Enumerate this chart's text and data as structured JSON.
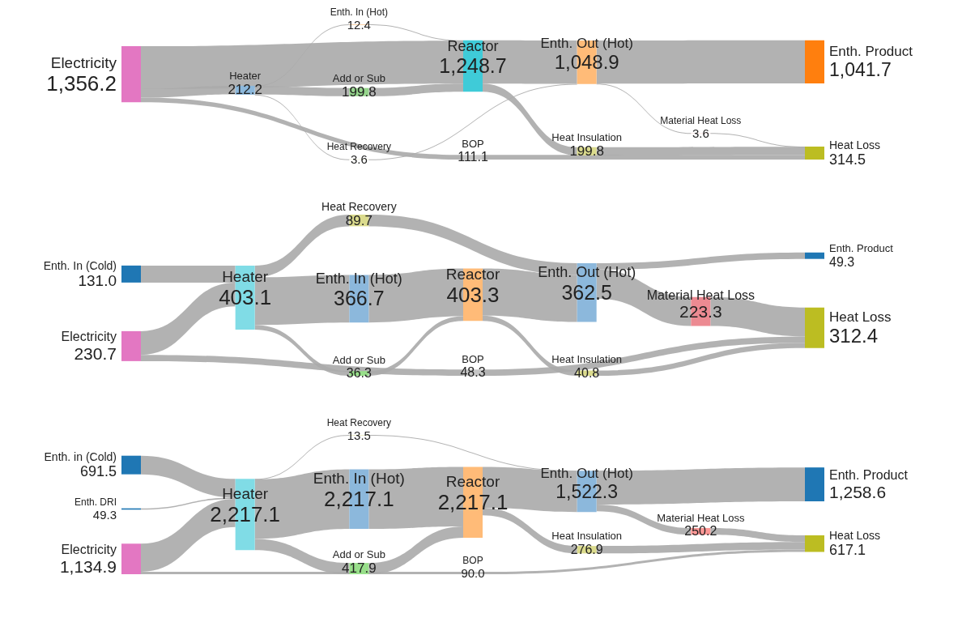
{
  "chart_data": [
    {
      "type": "other",
      "color": "#aaaaaa",
      "categories": [
        "Electricity",
        "Heater",
        "Enth. In (Hot)",
        "Add or Sub",
        "Heat Recovery",
        "Reactor",
        "BOP",
        "Enth. Out (Hot)",
        "Material Heat Loss",
        "Heat Insulation",
        "Enth. Product",
        "Heat Loss"
      ],
      "values": [
        1356.2,
        212.2,
        12.4,
        199.8,
        3.6,
        1248.7,
        111.1,
        1048.9,
        3.6,
        199.8,
        1041.7,
        314.5
      ],
      "value_labels": [
        "1,356.2",
        "212.2",
        "12.4",
        "199.8",
        "3.6",
        "1,248.7",
        "111.1",
        "1,048.9",
        "3.6",
        "199.8",
        "1,041.7",
        "314.5"
      ],
      "colors": [
        "#e377c2",
        "#8cb8dc",
        "#ffbb78",
        "#95d58c",
        "#dbdb8d",
        "#3fcbd8",
        "#c7c7c7",
        "#ffbb78",
        "#ff9896",
        "#dbdb8d",
        "#ff7f0e",
        "#bcbd22"
      ],
      "cells": [
        [
          null,
          true,
          null,
          null,
          null,
          true,
          true,
          null,
          null,
          null,
          null,
          null
        ],
        [
          null,
          null,
          true,
          true,
          null,
          null,
          null,
          null,
          null,
          null,
          null,
          null
        ],
        [
          null,
          null,
          null,
          null,
          null,
          true,
          null,
          null,
          null,
          null,
          null,
          null
        ],
        [
          null,
          null,
          null,
          null,
          null,
          true,
          null,
          null,
          null,
          null,
          null,
          null
        ],
        [
          null,
          true,
          null,
          null,
          null,
          null,
          null,
          null,
          null,
          null,
          null,
          null
        ],
        [
          null,
          null,
          null,
          null,
          null,
          null,
          null,
          true,
          null,
          true,
          null,
          null
        ],
        [
          null,
          null,
          null,
          null,
          null,
          null,
          null,
          null,
          null,
          null,
          null,
          true
        ],
        [
          null,
          null,
          null,
          null,
          true,
          null,
          null,
          null,
          true,
          null,
          true,
          null
        ],
        [
          null,
          null,
          null,
          null,
          null,
          null,
          null,
          null,
          null,
          null,
          null,
          true
        ],
        [
          null,
          null,
          null,
          null,
          null,
          null,
          null,
          null,
          null,
          null,
          null,
          true
        ],
        [
          null,
          null,
          null,
          null,
          null,
          null,
          null,
          null,
          null,
          null,
          null,
          null
        ],
        [
          null,
          null,
          null,
          null,
          null,
          null,
          null,
          null,
          null,
          null,
          null,
          null
        ]
      ]
    },
    {
      "type": "other",
      "color": "#aaaaaa",
      "categories": [
        "Enth. In (Cold)",
        "Electricity",
        "Heater",
        "Heat Recovery",
        "Enth. In (Hot)",
        "Add or Sub",
        "Reactor",
        "BOP",
        "Enth. Out (Hot)",
        "Material Heat Loss",
        "Heat Insulation",
        "Enth. Product",
        "Heat Loss"
      ],
      "values": [
        131.0,
        230.7,
        403.1,
        89.7,
        366.7,
        36.3,
        403.3,
        48.3,
        362.5,
        223.3,
        40.8,
        49.3,
        312.4
      ],
      "value_labels": [
        "131.0",
        "230.7",
        "403.1",
        "89.7",
        "366.7",
        "36.3",
        "403.3",
        "48.3",
        "362.5",
        "223.3",
        "40.8",
        "49.3",
        "312.4"
      ],
      "colors": [
        "#1f77b4",
        "#e377c2",
        "#80dce6",
        "#dbdb8d",
        "#8cb8dc",
        "#98df8a",
        "#ffbb78",
        "#c7c7c7",
        "#8cb8dc",
        "#ec8a92",
        "#dbdb8d",
        "#1f77b4",
        "#bcbd22"
      ],
      "cells": [
        [
          null,
          null,
          true,
          null,
          null,
          null,
          null,
          null,
          null,
          null,
          null,
          null,
          null
        ],
        [
          null,
          null,
          true,
          null,
          null,
          null,
          null,
          true,
          null,
          null,
          null,
          null,
          null
        ],
        [
          null,
          null,
          null,
          null,
          true,
          true,
          null,
          null,
          null,
          null,
          null,
          null,
          null
        ],
        [
          null,
          null,
          true,
          null,
          null,
          null,
          null,
          null,
          null,
          null,
          null,
          null,
          null
        ],
        [
          null,
          null,
          null,
          null,
          null,
          null,
          true,
          null,
          null,
          null,
          null,
          null,
          null
        ],
        [
          null,
          null,
          null,
          null,
          null,
          null,
          true,
          null,
          null,
          null,
          null,
          null,
          null
        ],
        [
          null,
          null,
          null,
          null,
          null,
          null,
          null,
          null,
          true,
          null,
          true,
          null,
          null
        ],
        [
          null,
          null,
          null,
          null,
          null,
          null,
          null,
          null,
          null,
          null,
          null,
          null,
          true
        ],
        [
          null,
          null,
          null,
          true,
          null,
          null,
          null,
          null,
          null,
          true,
          null,
          true,
          null
        ],
        [
          null,
          null,
          null,
          null,
          null,
          null,
          null,
          null,
          null,
          null,
          null,
          null,
          true
        ],
        [
          null,
          null,
          null,
          null,
          null,
          null,
          null,
          null,
          null,
          null,
          null,
          null,
          true
        ],
        [
          null,
          null,
          null,
          null,
          null,
          null,
          null,
          null,
          null,
          null,
          null,
          null,
          null
        ],
        [
          null,
          null,
          null,
          null,
          null,
          null,
          null,
          null,
          null,
          null,
          null,
          null,
          null
        ]
      ]
    },
    {
      "type": "other",
      "color": "#aaaaaa",
      "categories": [
        "Enth. in (Cold)",
        "Enth. DRI",
        "Electricity",
        "Heater",
        "Heat Recovery",
        "Enth. In (Hot)",
        "Add or Sub",
        "Reactor",
        "BOP",
        "Enth. Out (Hot)",
        "Material Heat Loss",
        "Heat Insulation",
        "Enth. Product",
        "Heat Loss"
      ],
      "values": [
        691.5,
        49.3,
        1134.9,
        2217.1,
        13.5,
        2217.1,
        417.9,
        2217.1,
        90.0,
        1522.3,
        250.2,
        276.9,
        1258.6,
        617.1
      ],
      "value_labels": [
        "691.5",
        "49.3",
        "1,134.9",
        "2,217.1",
        "13.5",
        "2,217.1",
        "417.9",
        "2,217.1",
        "90.0",
        "1,522.3",
        "250.2",
        "276.9",
        "1,258.6",
        "617.1"
      ],
      "colors": [
        "#1f77b4",
        "#1f77b4",
        "#e377c2",
        "#80dce6",
        "#dbdb8d",
        "#8cb8dc",
        "#98df8a",
        "#ffbb78",
        "#c7c7c7",
        "#8cb8dc",
        "#ff9896",
        "#dbdb8d",
        "#1f77b4",
        "#bcbd22"
      ],
      "cells": [
        [
          null,
          null,
          null,
          true,
          null,
          null,
          null,
          null,
          null,
          null,
          null,
          null,
          null,
          null
        ],
        [
          null,
          null,
          null,
          true,
          null,
          null,
          null,
          null,
          null,
          null,
          null,
          null,
          null,
          null
        ],
        [
          null,
          null,
          null,
          true,
          null,
          null,
          null,
          null,
          true,
          null,
          null,
          null,
          null,
          null
        ],
        [
          null,
          null,
          null,
          null,
          null,
          true,
          true,
          null,
          null,
          null,
          null,
          null,
          null,
          null
        ],
        [
          null,
          null,
          null,
          true,
          null,
          null,
          null,
          null,
          null,
          null,
          null,
          null,
          null,
          null
        ],
        [
          null,
          null,
          null,
          null,
          null,
          null,
          null,
          true,
          null,
          null,
          null,
          null,
          null,
          null
        ],
        [
          null,
          null,
          null,
          null,
          null,
          null,
          null,
          true,
          null,
          null,
          null,
          null,
          null,
          null
        ],
        [
          null,
          null,
          null,
          null,
          null,
          null,
          null,
          null,
          null,
          true,
          null,
          true,
          null,
          null
        ],
        [
          null,
          null,
          null,
          null,
          null,
          null,
          null,
          null,
          null,
          null,
          null,
          null,
          null,
          true
        ],
        [
          null,
          null,
          null,
          null,
          true,
          null,
          null,
          null,
          null,
          null,
          true,
          null,
          true,
          null
        ],
        [
          null,
          null,
          null,
          null,
          null,
          null,
          null,
          null,
          null,
          null,
          null,
          null,
          null,
          true
        ],
        [
          null,
          null,
          null,
          null,
          null,
          null,
          null,
          null,
          null,
          null,
          null,
          null,
          null,
          true
        ],
        [
          null,
          null,
          null,
          null,
          null,
          null,
          null,
          null,
          null,
          null,
          null,
          null,
          null,
          null
        ],
        [
          null,
          null,
          null,
          null,
          null,
          null,
          null,
          null,
          null,
          null,
          null,
          null,
          null,
          null
        ]
      ]
    }
  ]
}
